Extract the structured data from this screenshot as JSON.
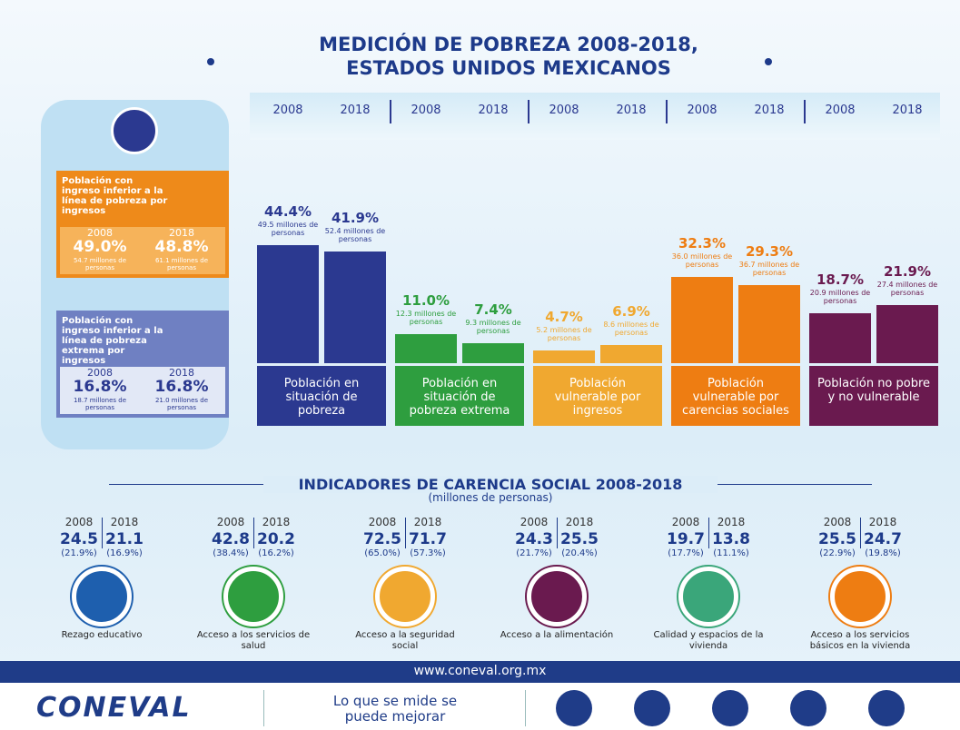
{
  "title_lines": [
    "MEDICIÓN DE POBREZA 2008-2018,",
    "ESTADOS UNIDOS MEXICANOS"
  ],
  "chart_data": {
    "type": "bar",
    "categories": [
      "Población en situación de pobreza",
      "Población en situación de pobreza extrema",
      "Población vulnerable por ingresos",
      "Población vulnerable por carencias sociales",
      "Población no pobre y no vulnerable"
    ],
    "colors": [
      "#2b3990",
      "#2e9e3f",
      "#f0a830",
      "#ee7d12",
      "#6a1a4f"
    ],
    "series": [
      {
        "name": "2008",
        "values": [
          44.4,
          11.0,
          4.7,
          32.3,
          18.7
        ],
        "value_labels": [
          "44.4%",
          "11.0%",
          "4.7%",
          "32.3%",
          "18.7%"
        ],
        "notes": [
          "49.5 millones de personas",
          "12.3 millones de personas",
          "5.2 millones de personas",
          "36.0 millones de personas",
          "20.9 millones de personas"
        ]
      },
      {
        "name": "2018",
        "values": [
          41.9,
          7.4,
          6.9,
          29.3,
          21.9
        ],
        "value_labels": [
          "41.9%",
          "7.4%",
          "6.9%",
          "29.3%",
          "21.9%"
        ],
        "notes": [
          "52.4 millones de personas",
          "9.3 millones de personas",
          "8.6 millones de personas",
          "36.7 millones de personas",
          "27.4 millones de personas"
        ]
      }
    ]
  },
  "income": [
    {
      "label": "Población con ingreso inferior a la línea de pobreza por ingresos",
      "years": [
        "2008",
        "2018"
      ],
      "values": [
        "49.0%",
        "48.8%"
      ],
      "notes": [
        "54.7 millones de personas",
        "61.1 millones de personas"
      ]
    },
    {
      "label": "Población con ingreso inferior a la línea de pobreza extrema por ingresos",
      "years": [
        "2008",
        "2018"
      ],
      "values": [
        "16.8%",
        "16.8%"
      ],
      "notes": [
        "18.7 millones de personas",
        "21.0 millones de personas"
      ]
    }
  ],
  "indicators": {
    "title": "INDICADORES DE CARENCIA SOCIAL 2008-2018",
    "subtitle": "(millones de personas)",
    "years": [
      "2008",
      "2018"
    ],
    "items": [
      {
        "label": "Rezago educativo",
        "values": [
          "24.5",
          "21.1"
        ],
        "shares": [
          "(21.9%)",
          "(16.9%)"
        ],
        "color": "#1e5fae"
      },
      {
        "label": "Acceso a los servicios de salud",
        "values": [
          "42.8",
          "20.2"
        ],
        "shares": [
          "(38.4%)",
          "(16.2%)"
        ],
        "color": "#2e9e3f"
      },
      {
        "label": "Acceso a la seguridad social",
        "values": [
          "72.5",
          "71.7"
        ],
        "shares": [
          "(65.0%)",
          "(57.3%)"
        ],
        "color": "#f0a830"
      },
      {
        "label": "Acceso a la alimentación",
        "values": [
          "24.3",
          "25.5"
        ],
        "shares": [
          "(21.7%)",
          "(20.4%)"
        ],
        "color": "#6a1a4f"
      },
      {
        "label": "Calidad y espacios de la vivienda",
        "values": [
          "19.7",
          "13.8"
        ],
        "shares": [
          "(17.7%)",
          "(11.1%)"
        ],
        "color": "#3aa67a"
      },
      {
        "label": "Acceso a los servicios básicos en la vivienda",
        "values": [
          "25.5",
          "24.7"
        ],
        "shares": [
          "(22.9%)",
          "(19.8%)"
        ],
        "color": "#ee7d12"
      }
    ]
  },
  "footer": {
    "url": "www.coneval.org.mx",
    "logo": "CONEVAL",
    "slogan": "Lo que se mide se puede mejorar"
  }
}
